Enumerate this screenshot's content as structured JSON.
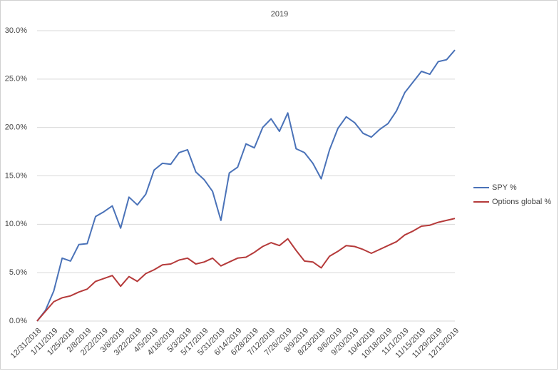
{
  "chart_data": {
    "type": "line",
    "title": "2019",
    "categories": [
      "12/31/2018",
      null,
      "1/11/2019",
      null,
      "1/25/2019",
      null,
      "2/8/2019",
      null,
      "2/22/2019",
      null,
      "3/8/2019",
      null,
      "3/22/2019",
      null,
      "4/5/2019",
      null,
      "4/18/2019",
      null,
      "5/3/2019",
      null,
      "5/17/2019",
      null,
      "5/31/2019",
      null,
      "6/14/2019",
      null,
      "6/28/2019",
      null,
      "7/12/2019",
      null,
      "7/26/2019",
      null,
      "8/9/2019",
      null,
      "8/23/2019",
      null,
      "9/6/2019",
      null,
      "9/20/2019",
      null,
      "10/4/2019",
      null,
      "10/18/2019",
      null,
      "11/1/2019",
      null,
      "11/15/2019",
      null,
      "11/29/2019",
      null,
      "12/13/2019"
    ],
    "series": [
      {
        "name": "SPY %",
        "color": "#4a72b8",
        "values": [
          0,
          1.1,
          3.1,
          6.5,
          6.2,
          7.9,
          8.0,
          10.8,
          11.3,
          11.9,
          9.6,
          12.8,
          12.0,
          13.1,
          15.6,
          16.3,
          16.2,
          17.4,
          17.7,
          15.4,
          14.6,
          13.4,
          10.4,
          15.3,
          15.9,
          18.3,
          17.9,
          20.0,
          20.9,
          19.6,
          21.5,
          17.8,
          17.4,
          16.3,
          14.7,
          17.7,
          19.9,
          21.1,
          20.5,
          19.4,
          19.0,
          19.8,
          20.4,
          21.7,
          23.6,
          24.7,
          25.8,
          25.5,
          26.8,
          27.0,
          28.0
        ]
      },
      {
        "name": "Options global %",
        "color": "#b53a3a",
        "values": [
          0,
          1.0,
          2.0,
          2.4,
          2.6,
          3.0,
          3.3,
          4.1,
          4.4,
          4.7,
          3.6,
          4.6,
          4.1,
          4.9,
          5.3,
          5.8,
          5.9,
          6.3,
          6.5,
          5.9,
          6.1,
          6.5,
          5.7,
          6.1,
          6.5,
          6.6,
          7.1,
          7.7,
          8.1,
          7.8,
          8.5,
          7.3,
          6.2,
          6.1,
          5.5,
          6.7,
          7.2,
          7.8,
          7.7,
          7.4,
          7.0,
          7.4,
          7.8,
          8.2,
          8.9,
          9.3,
          9.8,
          9.9,
          10.2,
          10.4,
          10.6
        ]
      }
    ],
    "ylim": [
      0,
      30
    ],
    "yticks": [
      {
        "value": 0,
        "label": "0.0%"
      },
      {
        "value": 5,
        "label": "5.0%"
      },
      {
        "value": 10,
        "label": "10.0%"
      },
      {
        "value": 15,
        "label": "15.0%"
      },
      {
        "value": 20,
        "label": "20.0%"
      },
      {
        "value": 25,
        "label": "25.0%"
      },
      {
        "value": 30,
        "label": "30.0%"
      }
    ],
    "grid": true,
    "legend": "right"
  }
}
